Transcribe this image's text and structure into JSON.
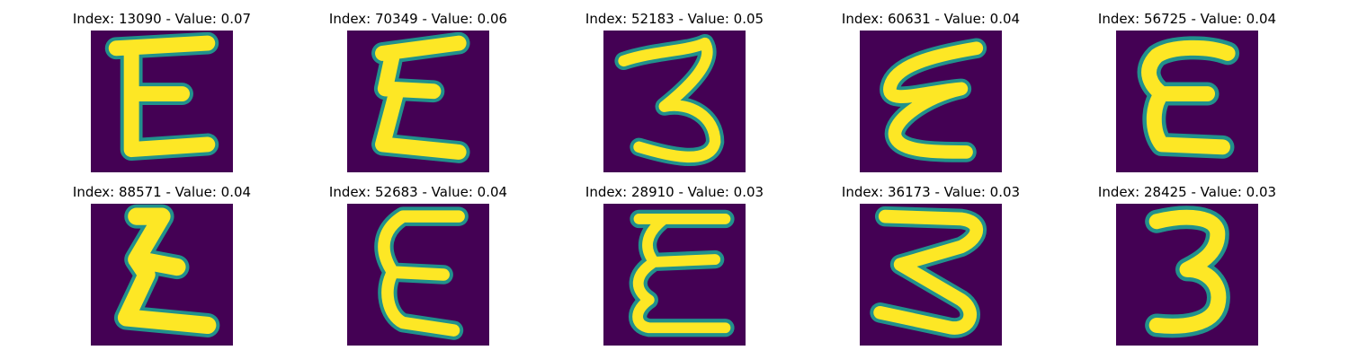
{
  "figure": {
    "background_color": "#440154",
    "stroke_color": "#fde725",
    "edge_color": "#21918c",
    "mid_color": "#35b779"
  },
  "panels": [
    {
      "title": "Index: 13090 - Value: 0.07",
      "glyph": "E"
    },
    {
      "title": "Index: 70349 - Value: 0.06",
      "glyph": "E"
    },
    {
      "title": "Index: 52183 - Value: 0.05",
      "glyph": "3"
    },
    {
      "title": "Index: 60631 - Value: 0.04",
      "glyph": "E"
    },
    {
      "title": "Index: 56725 - Value: 0.04",
      "glyph": "E"
    },
    {
      "title": "Index: 88571 - Value: 0.04",
      "glyph": "E"
    },
    {
      "title": "Index: 52683 - Value: 0.04",
      "glyph": "E"
    },
    {
      "title": "Index: 28910 - Value: 0.03",
      "glyph": "E"
    },
    {
      "title": "Index: 36173 - Value: 0.03",
      "glyph": "3"
    },
    {
      "title": "Index: 28425 - Value: 0.03",
      "glyph": "3"
    }
  ]
}
